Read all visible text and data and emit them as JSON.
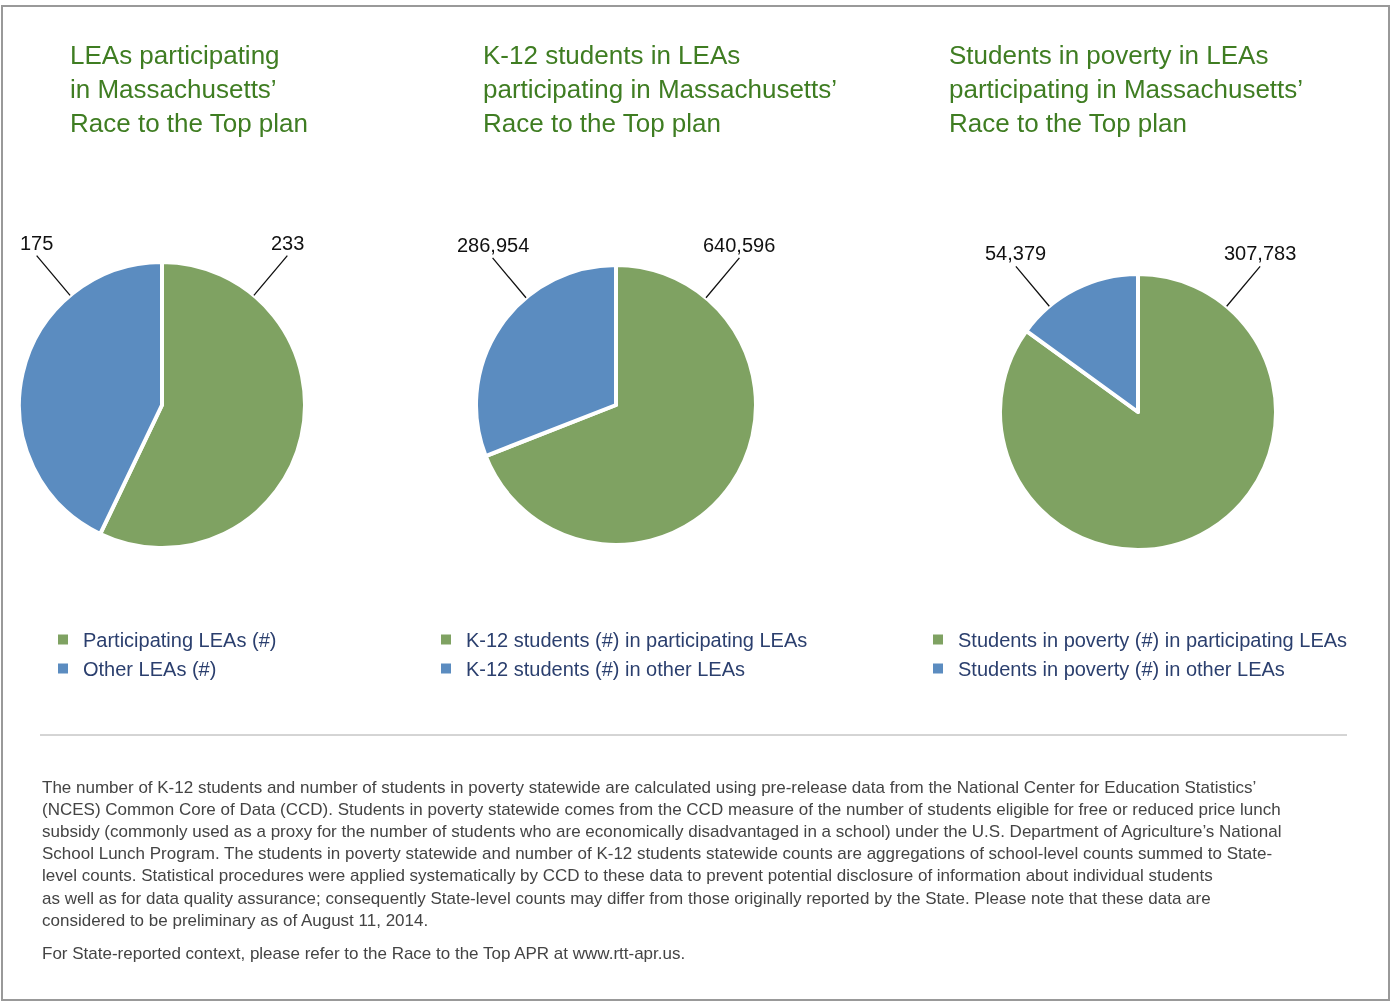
{
  "chart_data": [
    {
      "type": "pie",
      "title": "LEAs participating\nin Massachusetts’\nRace to the Top plan",
      "categories": [
        "Participating LEAs (#)",
        "Other LEAs (#)"
      ],
      "values": [
        233,
        175
      ],
      "value_labels": [
        "233",
        "175"
      ],
      "colors": [
        "#7fa262",
        "#5b8cc0"
      ],
      "legend": "bottom"
    },
    {
      "type": "pie",
      "title": "K-12 students in LEAs\nparticipating in Massachusetts’\nRace to the Top plan",
      "categories": [
        "K-12 students (#) in participating LEAs",
        "K-12 students (#) in other LEAs"
      ],
      "values": [
        640596,
        286954
      ],
      "value_labels": [
        "640,596",
        "286,954"
      ],
      "colors": [
        "#7fa262",
        "#5b8cc0"
      ],
      "legend": "bottom"
    },
    {
      "type": "pie",
      "title": "Students in poverty in LEAs\nparticipating in Massachusetts’\nRace to the Top plan",
      "categories": [
        "Students in poverty (#) in participating LEAs",
        "Students in poverty (#) in other LEAs"
      ],
      "values": [
        307783,
        54379
      ],
      "value_labels": [
        "307,783",
        "54,379"
      ],
      "colors": [
        "#7fa262",
        "#5b8cc0"
      ],
      "legend": "bottom"
    },
    {
      "type": "other",
      "annotations": [
        "The number of K-12 students and number of students in poverty statewide are calculated using pre-release data from the National Center for Education Statistics’ (NCES) Common Core of Data (CCD). Students in poverty statewide comes from the CCD measure of the number of students eligible for free or reduced price lunch subsidy (commonly used as a proxy for the number of students who are economically disadvantaged in a school) under the U.S. Department of Agriculture’s National School Lunch Program. The students in poverty statewide and number of K-12 students statewide counts are aggregations of school-level counts summed to State-level counts. Statistical procedures were applied systematically by CCD to these data to prevent potential disclosure of information about individual students as well as for data quality assurance; consequently State-level counts may differ from those originally reported by the State. Please note that these data are considered to be preliminary as of August 11, 2014.",
        "For State-reported context, please refer to the Race to the Top APR at www.rtt-apr.us."
      ]
    }
  ]
}
